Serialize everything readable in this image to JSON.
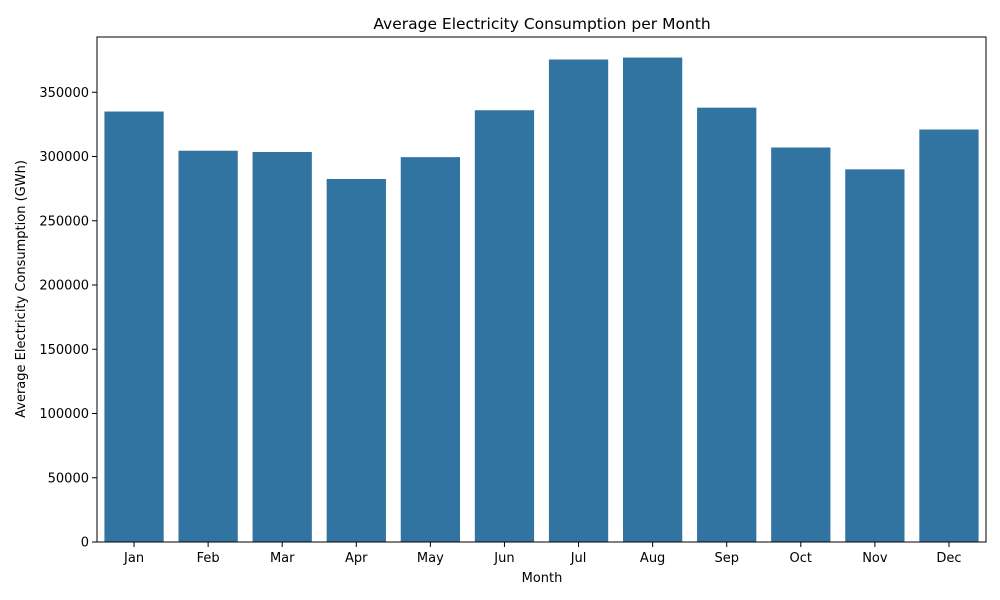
{
  "chart_data": {
    "type": "bar",
    "title": "Average Electricity Consumption per Month",
    "xlabel": "Month",
    "ylabel": "Average Electricity Consumption (GWh)",
    "categories": [
      "Jan",
      "Feb",
      "Mar",
      "Apr",
      "May",
      "Jun",
      "Jul",
      "Aug",
      "Sep",
      "Oct",
      "Nov",
      "Dec"
    ],
    "values": [
      335000,
      304500,
      303500,
      282500,
      299500,
      336000,
      375500,
      377000,
      338000,
      307000,
      290000,
      321000
    ],
    "ylim": [
      0,
      393000
    ],
    "yticks": [
      0,
      50000,
      100000,
      150000,
      200000,
      250000,
      300000,
      350000
    ],
    "grid": false,
    "bar_color": "#3274a1"
  }
}
